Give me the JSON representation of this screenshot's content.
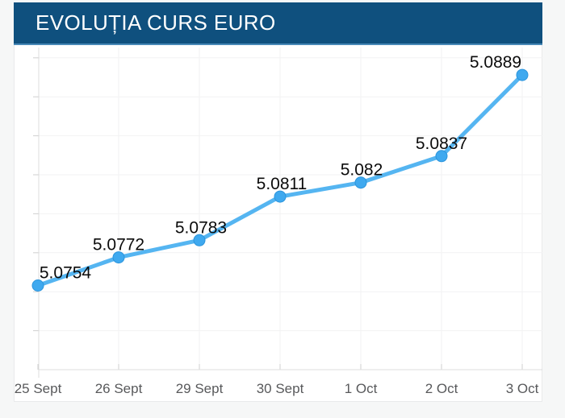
{
  "header": {
    "title": "EVOLUȚIA CURS EURO"
  },
  "colors": {
    "header_bg": "#0f507e",
    "header_accent": "#4788b7",
    "line": "#55b5f1",
    "marker_fill": "#3fa9ef",
    "marker_stroke": "#2b94dc",
    "data_label": "#0b0b0b",
    "axis_label": "#58595b",
    "axis_line": "#dcdcdc",
    "grid_line": "#f2f2f3",
    "tick": "#cfcfcf",
    "panel_border": "#e9eaeb",
    "panel_bg": "#ffffff",
    "page_bg": "#f6f7f7"
  },
  "chart_data": {
    "type": "line",
    "title": "EVOLUȚIA CURS EURO",
    "categories": [
      "25 Sept",
      "26 Sept",
      "29 Sept",
      "30 Sept",
      "1 Oct",
      "2 Oct",
      "3 Oct"
    ],
    "values": [
      5.0754,
      5.0772,
      5.0783,
      5.0811,
      5.082,
      5.0837,
      5.0889
    ],
    "labels": [
      "5.0754",
      "5.0772",
      "5.0783",
      "5.0811",
      "5.082",
      "5.0837",
      "5.0889"
    ],
    "xlabel": "",
    "ylabel": "",
    "ylim": [
      5.07,
      5.0905
    ],
    "y_tick_step": 0.0025,
    "grid": true,
    "legend": "none",
    "data_labels": true,
    "label_dx": [
      34,
      0,
      2,
      2,
      1,
      0,
      -33
    ]
  }
}
